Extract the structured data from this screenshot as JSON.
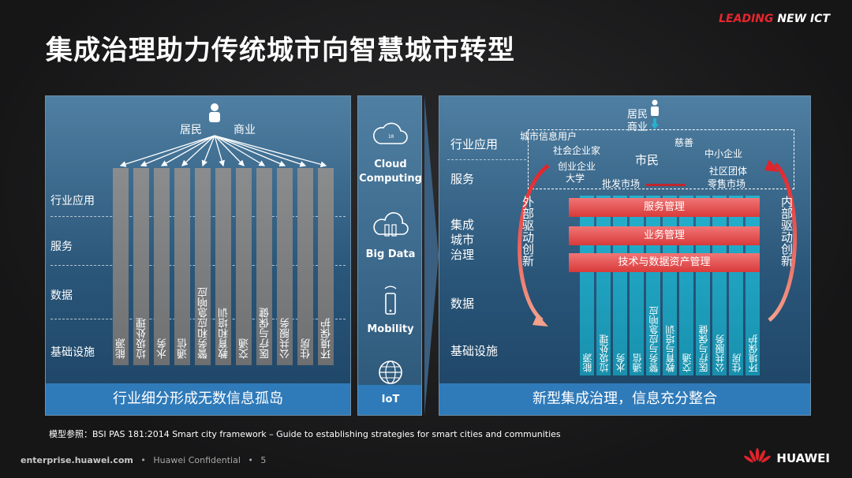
{
  "header": {
    "title": "集成治理助力传统城市向智慧城市转型",
    "brand_leading": "LEADING",
    "brand_rest": " NEW ICT",
    "brand_accent": "#e8262d"
  },
  "left_panel": {
    "user_labels": {
      "resident": "居民",
      "business": "商业"
    },
    "row_labels": [
      "行业应用",
      "服务",
      "数据",
      "基础设施"
    ],
    "columns": [
      "能源",
      "垃圾处理",
      "水务",
      "通信",
      "警务和应急响应",
      "教育和培训",
      "交通",
      "医疗与保健",
      "公共服务",
      "住房",
      "环境保护"
    ],
    "footer": "行业细分形成无数信息孤岛"
  },
  "middle_panel": {
    "items": [
      {
        "icon": "cloud-icon",
        "label_line1": "Cloud",
        "label_line2": "Computing"
      },
      {
        "icon": "big-data-icon",
        "label_line1": "Big Data",
        "label_line2": ""
      },
      {
        "icon": "mobile-phone-icon",
        "label_line1": "Mobility",
        "label_line2": ""
      },
      {
        "icon": "globe-icon",
        "label_line1": "IoT",
        "label_line2": ""
      }
    ]
  },
  "right_panel": {
    "user_labels": {
      "resident": "居民",
      "business": "商业"
    },
    "row_labels": [
      "行业应用",
      "服务",
      "集成\n城市\n治理",
      "数据",
      "基础设施"
    ],
    "stakeholders": [
      "城市信息用户",
      "社会企业家",
      "创业企业",
      "大学",
      "市民",
      "慈善",
      "中小企业",
      "社区团体",
      "零售市场",
      "批发市场"
    ],
    "governance_layers": [
      "服务管理",
      "业务管理",
      "技术与数据资产管理"
    ],
    "external_driver": "外部驱动创新",
    "internal_driver": "内部驱动创新",
    "columns": [
      "能源",
      "垃圾处理",
      "水务",
      "通信",
      "警务与应急响应",
      "教育与培训",
      "交通",
      "医疗与保健",
      "公共服务",
      "住房",
      "环境保护"
    ],
    "footer": "新型集成治理，信息充分整合"
  },
  "footer": {
    "reference": "模型参照：BSI  PAS 181:2014 Smart city framework – Guide to establishing strategies for  smart cities and communities",
    "site": "enterprise.huawei.com",
    "confidential": "Huawei Confidential",
    "page": "5",
    "company": "HUAWEI"
  }
}
